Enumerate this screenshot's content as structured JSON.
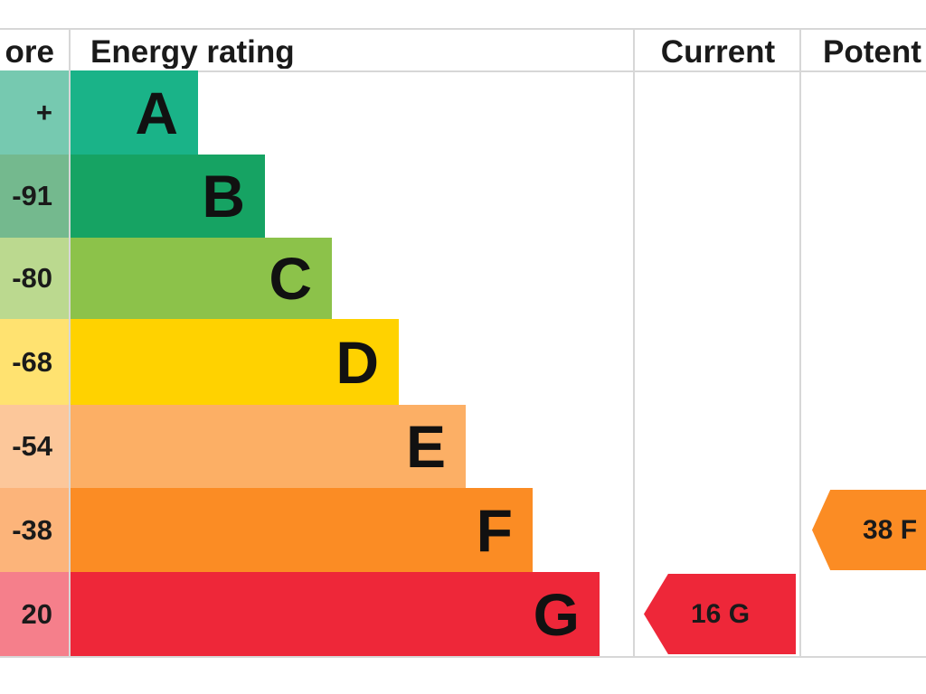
{
  "headers": {
    "score": "ore",
    "energy_rating": "Energy rating",
    "current": "Current",
    "potential": "Potent"
  },
  "chart_data": {
    "type": "bar",
    "categories": [
      "A",
      "B",
      "C",
      "D",
      "E",
      "F",
      "G"
    ],
    "score_ranges": [
      "+",
      "-91",
      "-80",
      "-68",
      "-54",
      "-38",
      "20"
    ],
    "band_colors": [
      "#1ab388",
      "#16a363",
      "#8cc24a",
      "#ffd200",
      "#fcaf65",
      "#fb8c24",
      "#ee2739"
    ],
    "score_colors": [
      "#76c9b0",
      "#74b98e",
      "#bbd98f",
      "#ffe270",
      "#fcc79a",
      "#fcb47a",
      "#f57f8b"
    ],
    "current": {
      "value": 16,
      "band": "G",
      "label": "16  G",
      "color": "#ee2739"
    },
    "potential": {
      "value": 38,
      "band": "F",
      "label": "38  F",
      "color": "#fb8c24"
    }
  }
}
